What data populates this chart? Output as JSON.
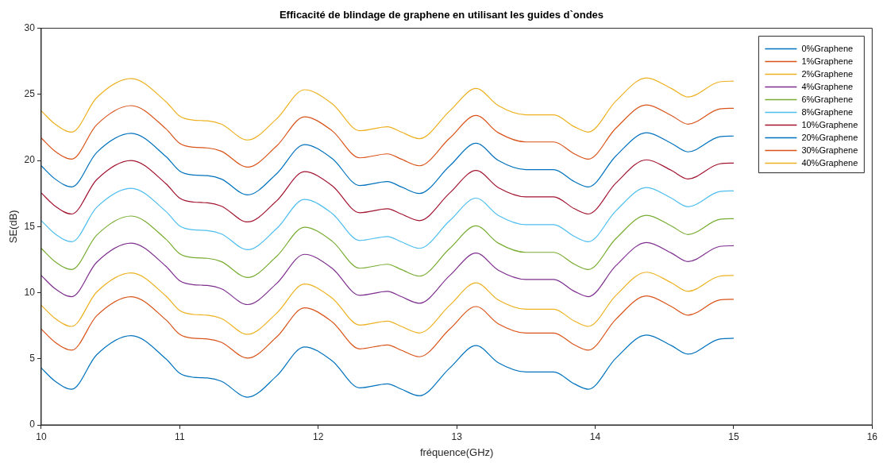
{
  "chart_data": {
    "type": "line",
    "title": "Efficacité de blindage de graphene en utilisant les guides d`ondes",
    "xlabel": "fréquence(GHz)",
    "ylabel": "SE(dB)",
    "x": [
      10,
      10.1,
      10.22,
      10.4,
      10.65,
      10.9,
      11,
      11.1,
      11.2,
      11.3,
      11.49,
      11.7,
      11.9,
      12.1,
      12.3,
      12.5,
      12.6,
      12.73,
      12.95,
      13.14,
      13.3,
      13.5,
      13.7,
      13.85,
      13.95,
      14.15,
      14.37,
      14.55,
      14.67,
      14.9,
      15
    ],
    "xlim": [
      10,
      16
    ],
    "xticks": [
      10,
      11,
      12,
      13,
      14,
      15,
      16
    ],
    "ylim": [
      0,
      30
    ],
    "yticks": [
      0,
      5,
      10,
      15,
      20,
      25,
      30
    ],
    "grid": false,
    "legend": "top right",
    "marker": "none",
    "line_style": "solid",
    "series": [
      {
        "name": "0%Graphene",
        "color": "#0072bd",
        "values": [
          4.3,
          3.3,
          2.7,
          5.3,
          6.75,
          5.0,
          3.9,
          3.6,
          3.55,
          3.3,
          2.1,
          3.7,
          5.9,
          4.85,
          2.8,
          3.1,
          2.7,
          2.2,
          4.3,
          6.0,
          4.7,
          4.0,
          4.0,
          3.1,
          2.7,
          5.05,
          6.8,
          6.0,
          5.35,
          6.5,
          6.55
        ]
      },
      {
        "name": "1%Graphene",
        "color": "#d95319",
        "values": [
          7.25,
          6.25,
          5.65,
          8.25,
          9.7,
          7.95,
          6.85,
          6.55,
          6.5,
          6.25,
          5.05,
          6.65,
          8.85,
          7.8,
          5.75,
          6.05,
          5.65,
          5.15,
          7.25,
          8.95,
          7.65,
          6.95,
          6.95,
          6.05,
          5.65,
          8.0,
          9.75,
          8.95,
          8.3,
          9.45,
          9.5
        ]
      },
      {
        "name": "2%Graphene",
        "color": "#edb120",
        "values": [
          9.05,
          8.05,
          7.45,
          10.05,
          11.5,
          9.75,
          8.65,
          8.35,
          8.3,
          8.05,
          6.85,
          8.45,
          10.65,
          9.6,
          7.55,
          7.85,
          7.45,
          6.95,
          9.05,
          10.75,
          9.45,
          8.75,
          8.75,
          7.85,
          7.45,
          9.8,
          11.55,
          10.75,
          10.1,
          11.25,
          11.3
        ]
      },
      {
        "name": "4%Graphene",
        "color": "#7e2f8e",
        "values": [
          11.3,
          10.3,
          9.7,
          12.3,
          13.75,
          12.0,
          10.9,
          10.6,
          10.55,
          10.3,
          9.1,
          10.7,
          12.9,
          11.85,
          9.8,
          10.1,
          9.7,
          9.2,
          11.3,
          13.0,
          11.7,
          11.0,
          11.0,
          10.1,
          9.7,
          12.05,
          13.8,
          13.0,
          12.35,
          13.5,
          13.55
        ]
      },
      {
        "name": "6%Graphene",
        "color": "#77ac30",
        "values": [
          13.35,
          12.35,
          11.75,
          14.35,
          15.8,
          14.05,
          12.95,
          12.65,
          12.6,
          12.35,
          11.15,
          12.75,
          14.95,
          13.9,
          11.85,
          12.15,
          11.75,
          11.25,
          13.35,
          15.05,
          13.75,
          13.05,
          13.05,
          12.15,
          11.75,
          14.1,
          15.85,
          15.05,
          14.4,
          15.55,
          15.6
        ]
      },
      {
        "name": "8%Graphene",
        "color": "#4dbeee",
        "values": [
          15.45,
          14.45,
          13.85,
          16.45,
          17.9,
          16.15,
          15.05,
          14.75,
          14.7,
          14.45,
          13.25,
          14.85,
          17.05,
          16.0,
          13.95,
          14.25,
          13.85,
          13.35,
          15.45,
          17.15,
          15.85,
          15.15,
          15.15,
          14.25,
          13.85,
          16.2,
          17.95,
          17.15,
          16.5,
          17.65,
          17.7
        ]
      },
      {
        "name": "10%Graphene",
        "color": "#a2142f",
        "values": [
          17.55,
          16.55,
          15.95,
          18.55,
          20.0,
          18.25,
          17.15,
          16.85,
          16.8,
          16.55,
          15.35,
          16.95,
          19.15,
          18.1,
          16.05,
          16.35,
          15.95,
          15.45,
          17.55,
          19.25,
          17.95,
          17.25,
          17.25,
          16.35,
          15.95,
          18.3,
          20.05,
          19.25,
          18.6,
          19.75,
          19.8
        ]
      },
      {
        "name": "20%Graphene",
        "color": "#0072bd",
        "values": [
          19.6,
          18.6,
          18.0,
          20.6,
          22.05,
          20.3,
          19.2,
          18.9,
          18.85,
          18.6,
          17.4,
          19.0,
          21.2,
          20.15,
          18.1,
          18.4,
          18.0,
          17.5,
          19.6,
          21.3,
          20.0,
          19.3,
          19.3,
          18.4,
          18.0,
          20.35,
          22.1,
          21.3,
          20.65,
          21.8,
          21.85
        ]
      },
      {
        "name": "30%Graphene",
        "color": "#d95319",
        "values": [
          21.7,
          20.7,
          20.1,
          22.7,
          24.15,
          22.4,
          21.3,
          21.0,
          20.95,
          20.7,
          19.5,
          21.1,
          23.3,
          22.25,
          20.2,
          20.5,
          20.1,
          19.6,
          21.7,
          23.4,
          22.1,
          21.4,
          21.4,
          20.5,
          20.1,
          22.45,
          24.2,
          23.4,
          22.75,
          23.9,
          23.95
        ]
      },
      {
        "name": "40%Graphene",
        "color": "#edb120",
        "values": [
          23.75,
          22.75,
          22.15,
          24.75,
          26.2,
          24.45,
          23.35,
          23.05,
          23.0,
          22.75,
          21.55,
          23.15,
          25.35,
          24.3,
          22.25,
          22.55,
          22.15,
          21.65,
          23.75,
          25.45,
          24.15,
          23.45,
          23.45,
          22.55,
          22.15,
          24.5,
          26.25,
          25.45,
          24.8,
          25.95,
          26.0
        ]
      }
    ]
  }
}
